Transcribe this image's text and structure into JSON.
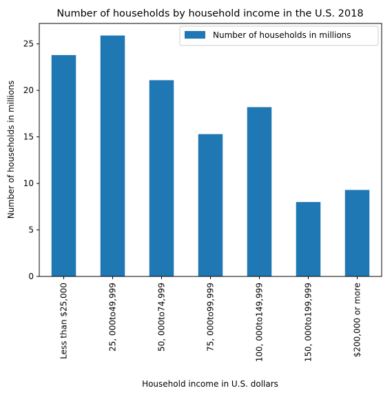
{
  "chart_data": {
    "type": "bar",
    "title": "Number of households by household income in the U.S. 2018",
    "xlabel": "Household income in U.S. dollars",
    "ylabel": "Number of households in millions",
    "categories": [
      "Less than $25,000",
      "25, 000to49,999",
      "50, 000to74,999",
      "75, 000to99,999",
      "100, 000to149,999",
      "150, 000to199,999",
      "$200,000 or more"
    ],
    "series": [
      {
        "name": "Number of households in millions",
        "values": [
          23.8,
          25.9,
          21.1,
          15.3,
          18.2,
          8.0,
          9.3
        ],
        "color": "#1f77b4"
      }
    ],
    "ylim": [
      0,
      27.2
    ],
    "yticks": [
      0,
      5,
      10,
      15,
      20,
      25
    ],
    "legend_position": "top-right",
    "grid": false
  }
}
